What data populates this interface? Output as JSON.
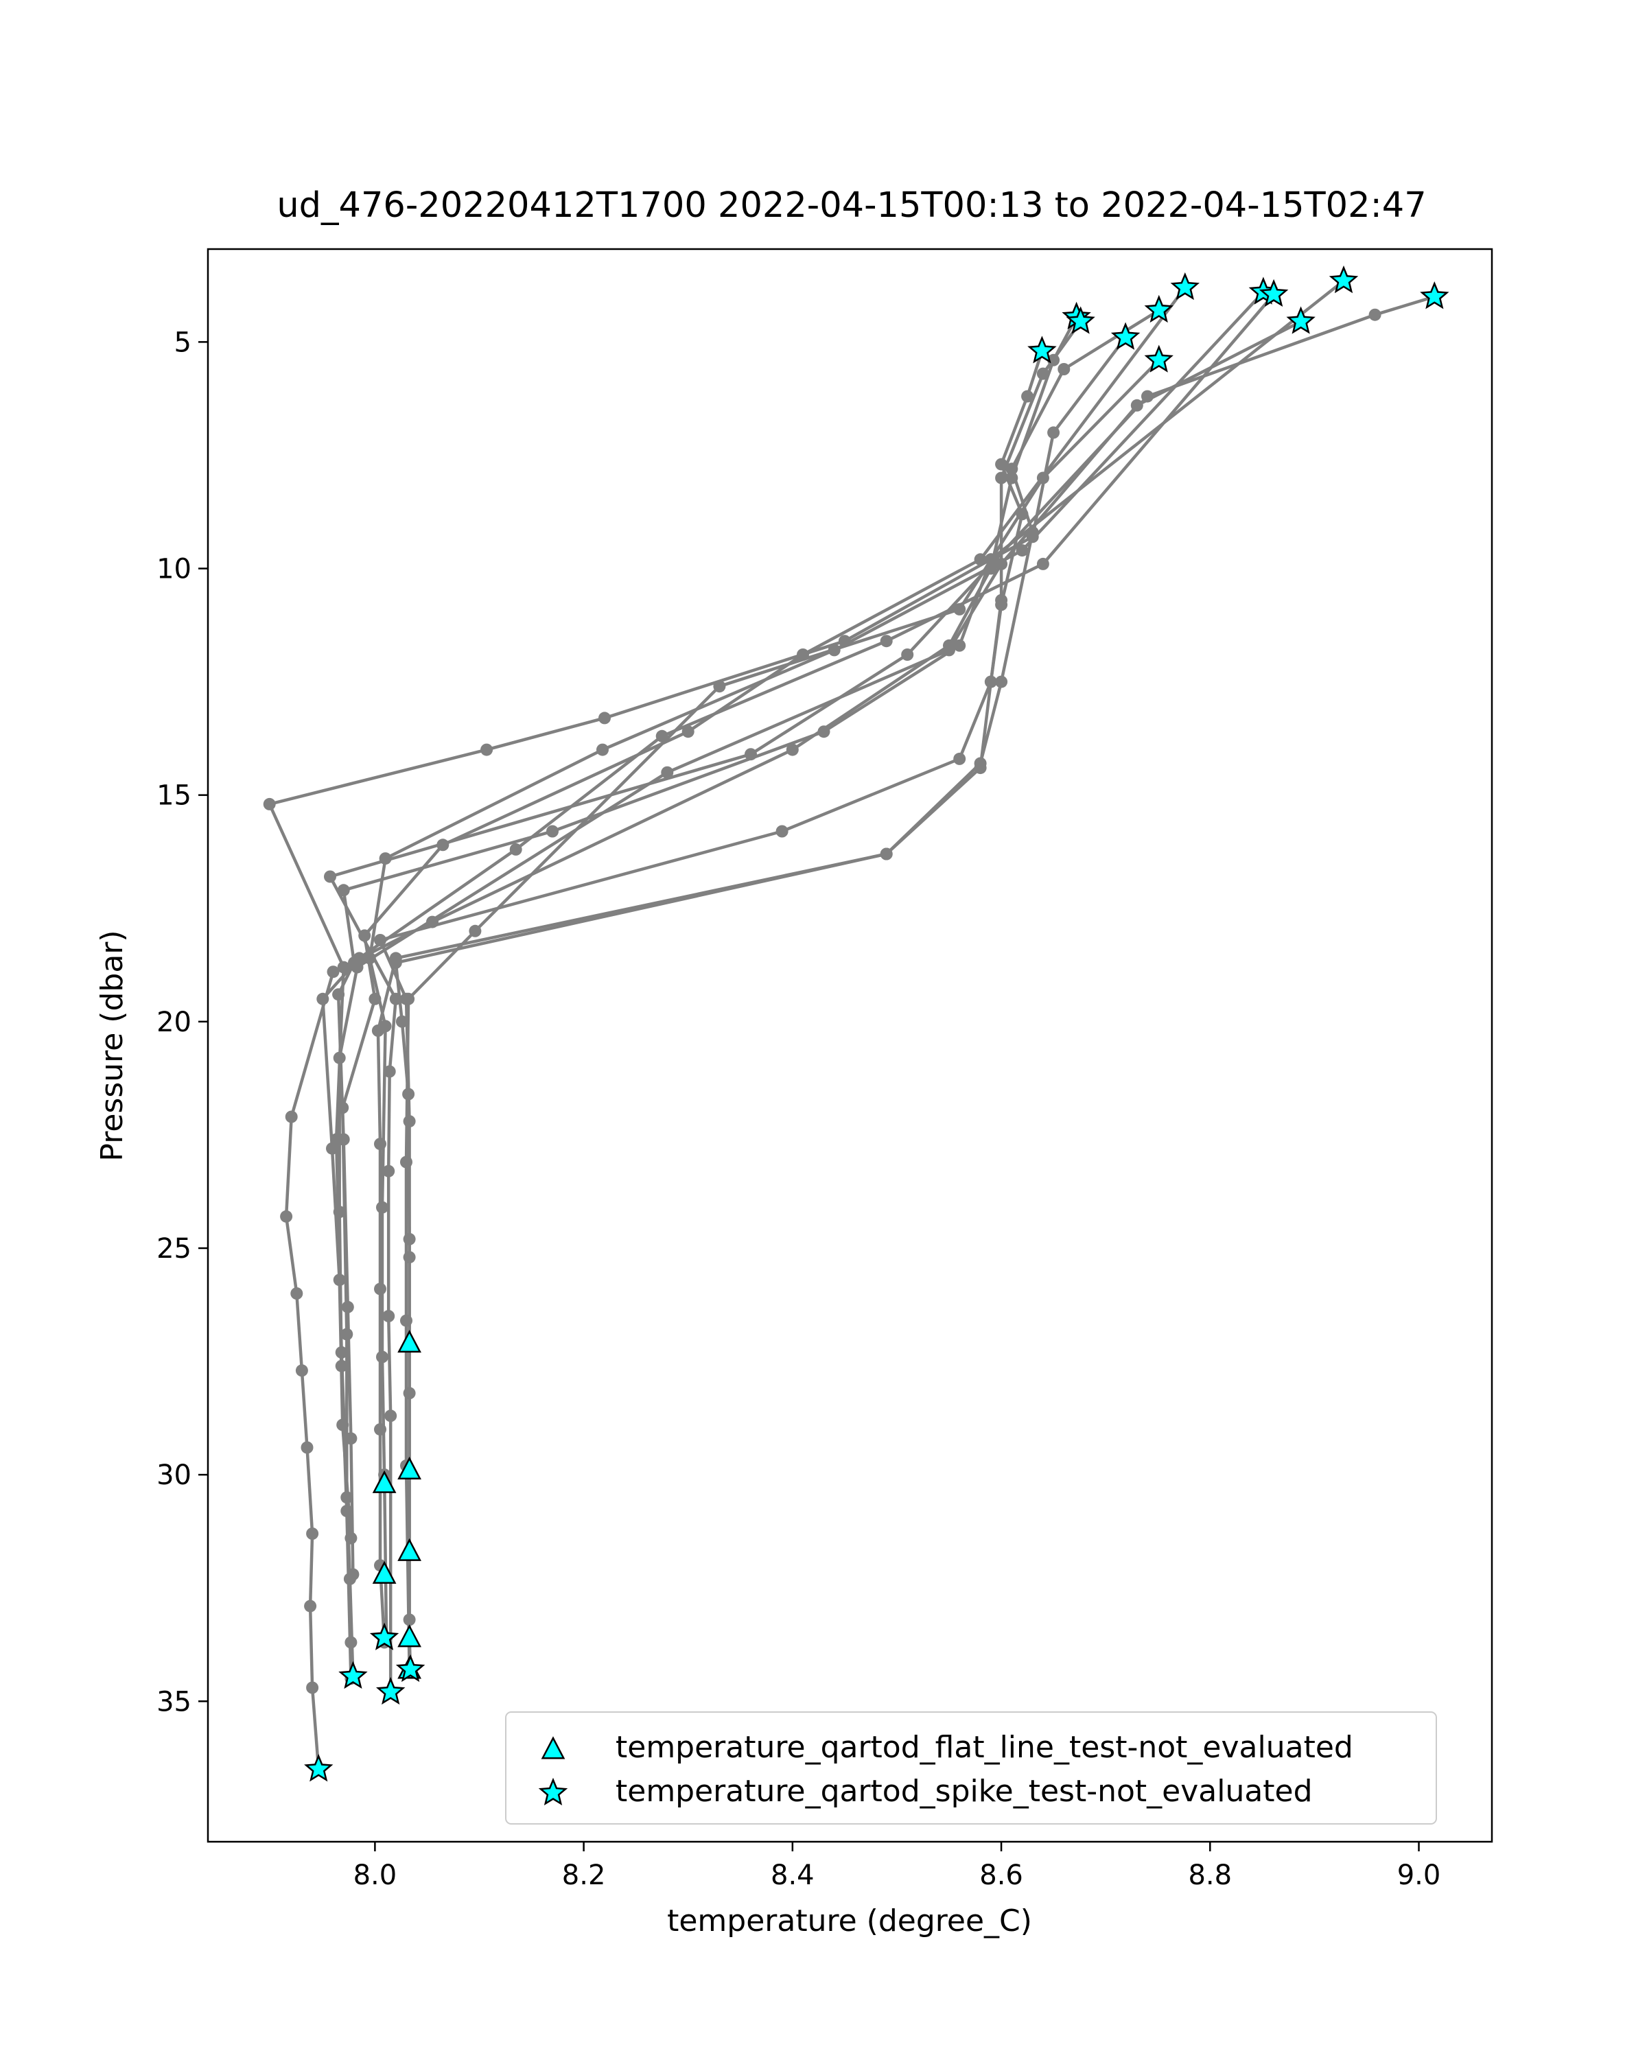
{
  "chart_data": {
    "type": "scatter",
    "title": "ud_476-20220412T1700 2022-04-15T00:13 to 2022-04-15T02:47",
    "xlabel": "temperature (degree_C)",
    "ylabel": "Pressure (dbar)",
    "xlim": [
      7.84,
      9.07
    ],
    "ylim": [
      38.1,
      2.95
    ],
    "y_inverted": true,
    "grid": false,
    "legend_position": "lower-right",
    "x_ticks": [
      {
        "v": 8.0,
        "label": "8.0"
      },
      {
        "v": 8.2,
        "label": "8.2"
      },
      {
        "v": 8.4,
        "label": "8.4"
      },
      {
        "v": 8.6,
        "label": "8.6"
      },
      {
        "v": 8.8,
        "label": "8.8"
      },
      {
        "v": 9.0,
        "label": "9.0"
      }
    ],
    "y_ticks": [
      {
        "v": 5,
        "label": "5"
      },
      {
        "v": 10,
        "label": "10"
      },
      {
        "v": 15,
        "label": "15"
      },
      {
        "v": 20,
        "label": "20"
      },
      {
        "v": 25,
        "label": "25"
      },
      {
        "v": 30,
        "label": "30"
      },
      {
        "v": 35,
        "label": "35"
      }
    ],
    "profile_color": "#808080",
    "marker_color": "#00ffff",
    "profiles": [
      {
        "points": [
          [
            8.928,
            3.65
          ],
          [
            8.59,
            9.8
          ],
          [
            8.45,
            11.6
          ],
          [
            8.22,
            13.3
          ],
          [
            8.107,
            14.0
          ],
          [
            7.899,
            15.2
          ],
          [
            7.97,
            18.8
          ],
          [
            7.963,
            22.6
          ],
          [
            7.968,
            27.3
          ],
          [
            7.976,
            32.3
          ],
          [
            7.979,
            34.45
          ]
        ]
      },
      {
        "points": [
          [
            8.776,
            3.8
          ],
          [
            8.58,
            9.8
          ],
          [
            8.41,
            11.9
          ],
          [
            8.3,
            13.6
          ],
          [
            8.065,
            16.1
          ],
          [
            7.99,
            18.1
          ],
          [
            8.0,
            19.5
          ],
          [
            7.969,
            21.9
          ],
          [
            7.973,
            26.9
          ],
          [
            7.973,
            30.5
          ],
          [
            7.977,
            33.7
          ]
        ]
      },
      {
        "points": [
          [
            8.851,
            3.9
          ],
          [
            8.62,
            9.6
          ],
          [
            8.44,
            11.8
          ],
          [
            8.218,
            14.0
          ],
          [
            8.01,
            16.4
          ],
          [
            7.995,
            18.6
          ],
          [
            8.01,
            20.1
          ],
          [
            8.007,
            24.1
          ],
          [
            8.007,
            27.4
          ],
          [
            8.009,
            30.0
          ],
          [
            8.011,
            33.6
          ]
        ]
      },
      {
        "points": [
          [
            8.861,
            3.95
          ],
          [
            8.64,
            9.9
          ],
          [
            8.49,
            11.6
          ],
          [
            8.275,
            13.7
          ],
          [
            8.135,
            16.2
          ],
          [
            7.985,
            18.6
          ],
          [
            7.95,
            19.5
          ],
          [
            7.959,
            22.8
          ],
          [
            7.966,
            25.7
          ],
          [
            7.969,
            28.9
          ],
          [
            7.977,
            31.4
          ]
        ]
      },
      {
        "points": [
          [
            9.015,
            4.0
          ],
          [
            8.958,
            4.4
          ],
          [
            8.74,
            6.2
          ],
          [
            8.51,
            11.9
          ],
          [
            8.36,
            14.1
          ],
          [
            7.957,
            16.8
          ],
          [
            8.02,
            19.5
          ],
          [
            8.014,
            21.1
          ],
          [
            8.013,
            23.3
          ],
          [
            8.013,
            26.5
          ],
          [
            8.015,
            28.7
          ],
          [
            8.015,
            34.8
          ]
        ]
      },
      {
        "points": [
          [
            8.751,
            4.3
          ],
          [
            8.66,
            5.6
          ],
          [
            8.61,
            7.8
          ],
          [
            8.63,
            9.2
          ],
          [
            8.6,
            12.5
          ],
          [
            8.58,
            14.3
          ],
          [
            8.49,
            16.3
          ],
          [
            8.02,
            18.7
          ],
          [
            8.026,
            20.0
          ],
          [
            8.032,
            21.6
          ],
          [
            8.033,
            24.8
          ],
          [
            8.033,
            27.1
          ],
          [
            8.033,
            29.9
          ],
          [
            8.033,
            31.7
          ],
          [
            8.033,
            33.6
          ],
          [
            8.034,
            34.3
          ]
        ]
      },
      {
        "points": [
          [
            8.676,
            4.55
          ],
          [
            8.64,
            5.7
          ],
          [
            8.6,
            8.0
          ],
          [
            8.6,
            10.7
          ],
          [
            8.59,
            12.5
          ],
          [
            8.56,
            14.2
          ],
          [
            8.39,
            15.8
          ],
          [
            8.005,
            18.2
          ],
          [
            8.03,
            19.5
          ],
          [
            8.033,
            22.2
          ],
          [
            8.033,
            25.2
          ],
          [
            8.033,
            28.2
          ],
          [
            8.033,
            33.2
          ]
        ]
      },
      {
        "points": [
          [
            8.887,
            4.55
          ],
          [
            8.73,
            6.4
          ],
          [
            8.6,
            9.9
          ],
          [
            8.55,
            11.8
          ],
          [
            8.28,
            14.5
          ],
          [
            7.983,
            18.8
          ],
          [
            7.966,
            20.8
          ],
          [
            7.966,
            24.2
          ],
          [
            7.968,
            27.6
          ],
          [
            7.973,
            30.8
          ],
          [
            7.977,
            34.5
          ]
        ]
      },
      {
        "points": [
          [
            8.719,
            4.9
          ],
          [
            8.65,
            7.0
          ],
          [
            8.63,
            9.3
          ],
          [
            8.59,
            9.8
          ],
          [
            8.56,
            11.7
          ],
          [
            8.43,
            13.6
          ],
          [
            8.17,
            15.8
          ],
          [
            7.97,
            17.1
          ],
          [
            7.98,
            18.7
          ],
          [
            7.965,
            19.4
          ],
          [
            7.97,
            22.6
          ],
          [
            7.974,
            26.3
          ],
          [
            7.977,
            29.2
          ],
          [
            7.979,
            32.2
          ]
        ]
      },
      {
        "points": [
          [
            8.751,
            5.4
          ],
          [
            8.64,
            8.0
          ],
          [
            8.56,
            10.9
          ],
          [
            8.33,
            12.6
          ],
          [
            8.096,
            18.0
          ],
          [
            8.032,
            19.5
          ],
          [
            8.03,
            23.1
          ],
          [
            8.03,
            26.6
          ],
          [
            8.03,
            29.8
          ],
          [
            8.033,
            34.3
          ]
        ]
      },
      {
        "points": [
          [
            8.639,
            5.2
          ],
          [
            8.625,
            6.2
          ],
          [
            8.6,
            7.7
          ],
          [
            8.62,
            8.8
          ],
          [
            8.6,
            10.8
          ],
          [
            8.59,
            12.5
          ],
          [
            8.58,
            14.4
          ],
          [
            8.49,
            16.3
          ],
          [
            8.02,
            18.6
          ],
          [
            8.003,
            20.2
          ],
          [
            8.005,
            22.7
          ],
          [
            8.005,
            25.9
          ],
          [
            8.005,
            29.0
          ],
          [
            8.005,
            32.0
          ],
          [
            8.009,
            33.7
          ]
        ]
      },
      {
        "points": [
          [
            8.672,
            4.45
          ],
          [
            8.65,
            5.4
          ],
          [
            8.61,
            8.0
          ],
          [
            8.59,
            10.0
          ],
          [
            8.55,
            11.7
          ],
          [
            8.4,
            14.0
          ],
          [
            8.055,
            17.8
          ],
          [
            7.96,
            18.9
          ],
          [
            7.92,
            22.1
          ],
          [
            7.915,
            24.3
          ],
          [
            7.925,
            26.0
          ],
          [
            7.93,
            27.7
          ],
          [
            7.935,
            29.4
          ],
          [
            7.94,
            31.3
          ],
          [
            7.938,
            32.9
          ],
          [
            7.94,
            34.7
          ],
          [
            7.946,
            36.5
          ]
        ]
      }
    ],
    "flat_line_points": [
      [
        8.033,
        27.1
      ],
      [
        8.033,
        29.9
      ],
      [
        8.009,
        30.2
      ],
      [
        8.033,
        31.7
      ],
      [
        8.009,
        32.2
      ],
      [
        8.033,
        33.6
      ],
      [
        8.033,
        34.3
      ]
    ],
    "spike_points": [
      [
        8.928,
        3.65
      ],
      [
        8.776,
        3.8
      ],
      [
        8.851,
        3.9
      ],
      [
        8.861,
        3.95
      ],
      [
        9.015,
        4.0
      ],
      [
        8.751,
        4.3
      ],
      [
        8.672,
        4.45
      ],
      [
        8.676,
        4.55
      ],
      [
        8.887,
        4.55
      ],
      [
        8.719,
        4.9
      ],
      [
        8.639,
        5.2
      ],
      [
        8.751,
        5.4
      ],
      [
        7.979,
        34.45
      ],
      [
        8.009,
        33.6
      ],
      [
        8.015,
        34.8
      ],
      [
        8.034,
        34.3
      ],
      [
        7.946,
        36.5
      ]
    ],
    "legend": [
      {
        "label": "temperature_qartod_flat_line_test-not_evaluated",
        "marker": "triangle"
      },
      {
        "label": "temperature_qartod_spike_test-not_evaluated",
        "marker": "star"
      }
    ]
  }
}
